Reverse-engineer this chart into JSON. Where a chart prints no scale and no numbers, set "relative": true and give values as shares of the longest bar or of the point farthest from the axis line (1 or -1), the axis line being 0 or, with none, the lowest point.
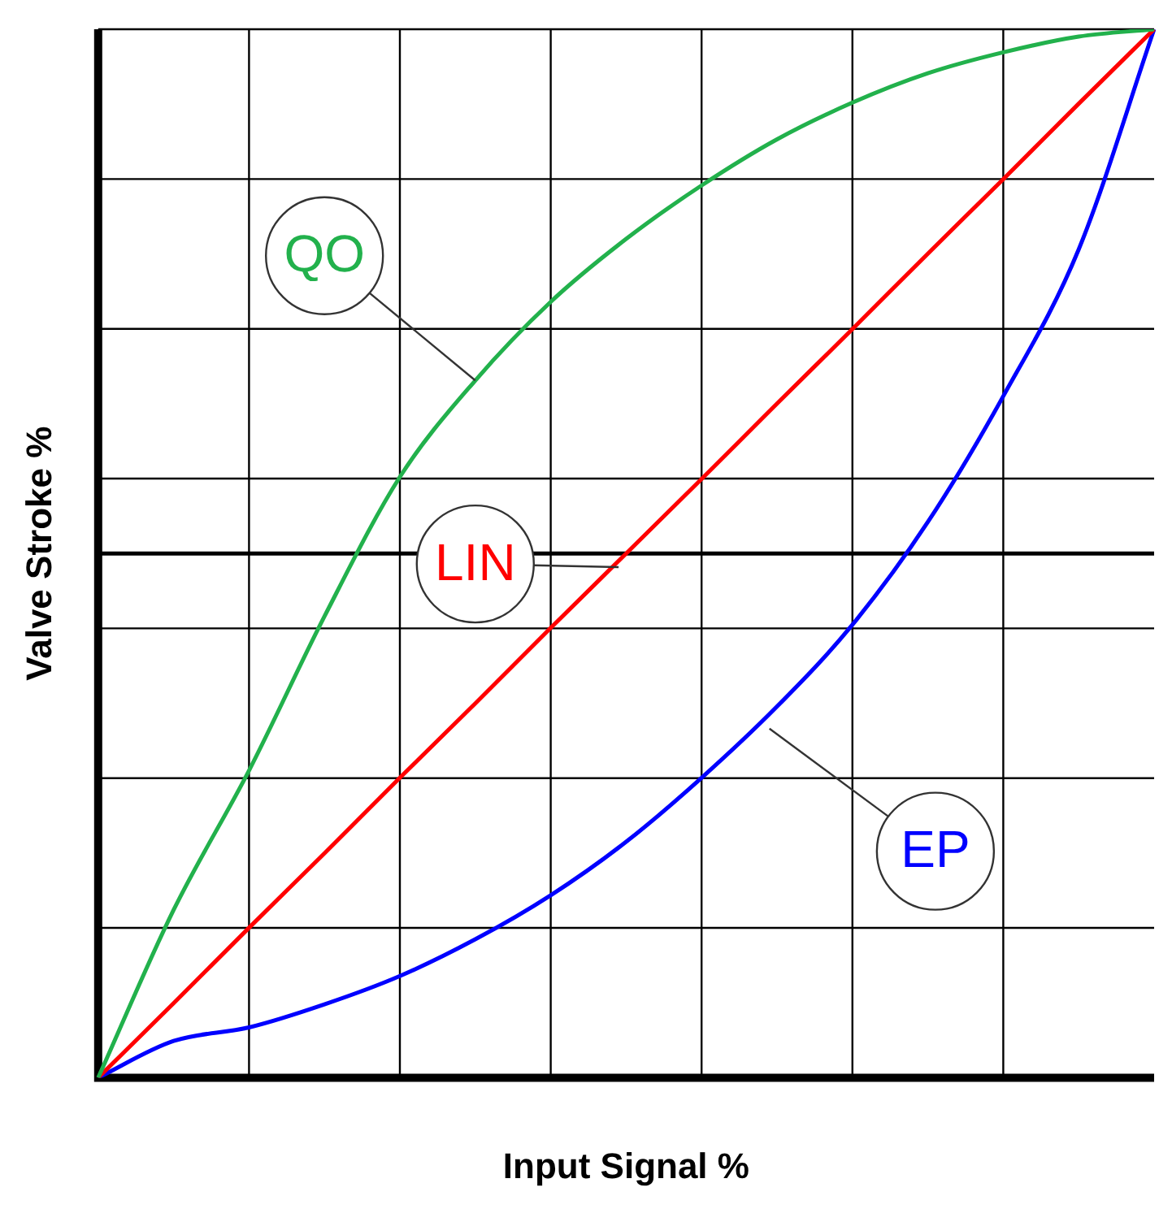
{
  "chart_data": {
    "type": "line",
    "xlabel": "Input Signal %",
    "ylabel": "Valve Stroke %",
    "relative": true,
    "grid": true,
    "legend": false,
    "marker": "none",
    "line_style": "solid",
    "categories": [
      null,
      null,
      null,
      null,
      null,
      null,
      null,
      null,
      null,
      null,
      null,
      null,
      null,
      null,
      null
    ],
    "series": [
      {
        "name": "QO",
        "color": "#22b14c",
        "values": [
          0,
          0.16,
          0.293,
          0.44,
          0.573,
          0.665,
          0.74,
          0.8,
          0.851,
          0.895,
          0.93,
          0.958,
          0.978,
          0.993,
          1
        ]
      },
      {
        "name": "LIN",
        "color": "#ff0000",
        "values": [
          0,
          0.071,
          0.143,
          0.214,
          0.286,
          0.357,
          0.429,
          0.5,
          0.571,
          0.643,
          0.714,
          0.786,
          0.857,
          0.929,
          1
        ]
      },
      {
        "name": "EP",
        "color": "#0000ff",
        "values": [
          0,
          0.035,
          0.048,
          0.07,
          0.097,
          0.132,
          0.174,
          0.225,
          0.286,
          0.354,
          0.432,
          0.53,
          0.65,
          0.79,
          1
        ]
      }
    ],
    "ref_lines": [
      {
        "axis": "y",
        "value": 0.5,
        "color": "#000000"
      }
    ]
  }
}
